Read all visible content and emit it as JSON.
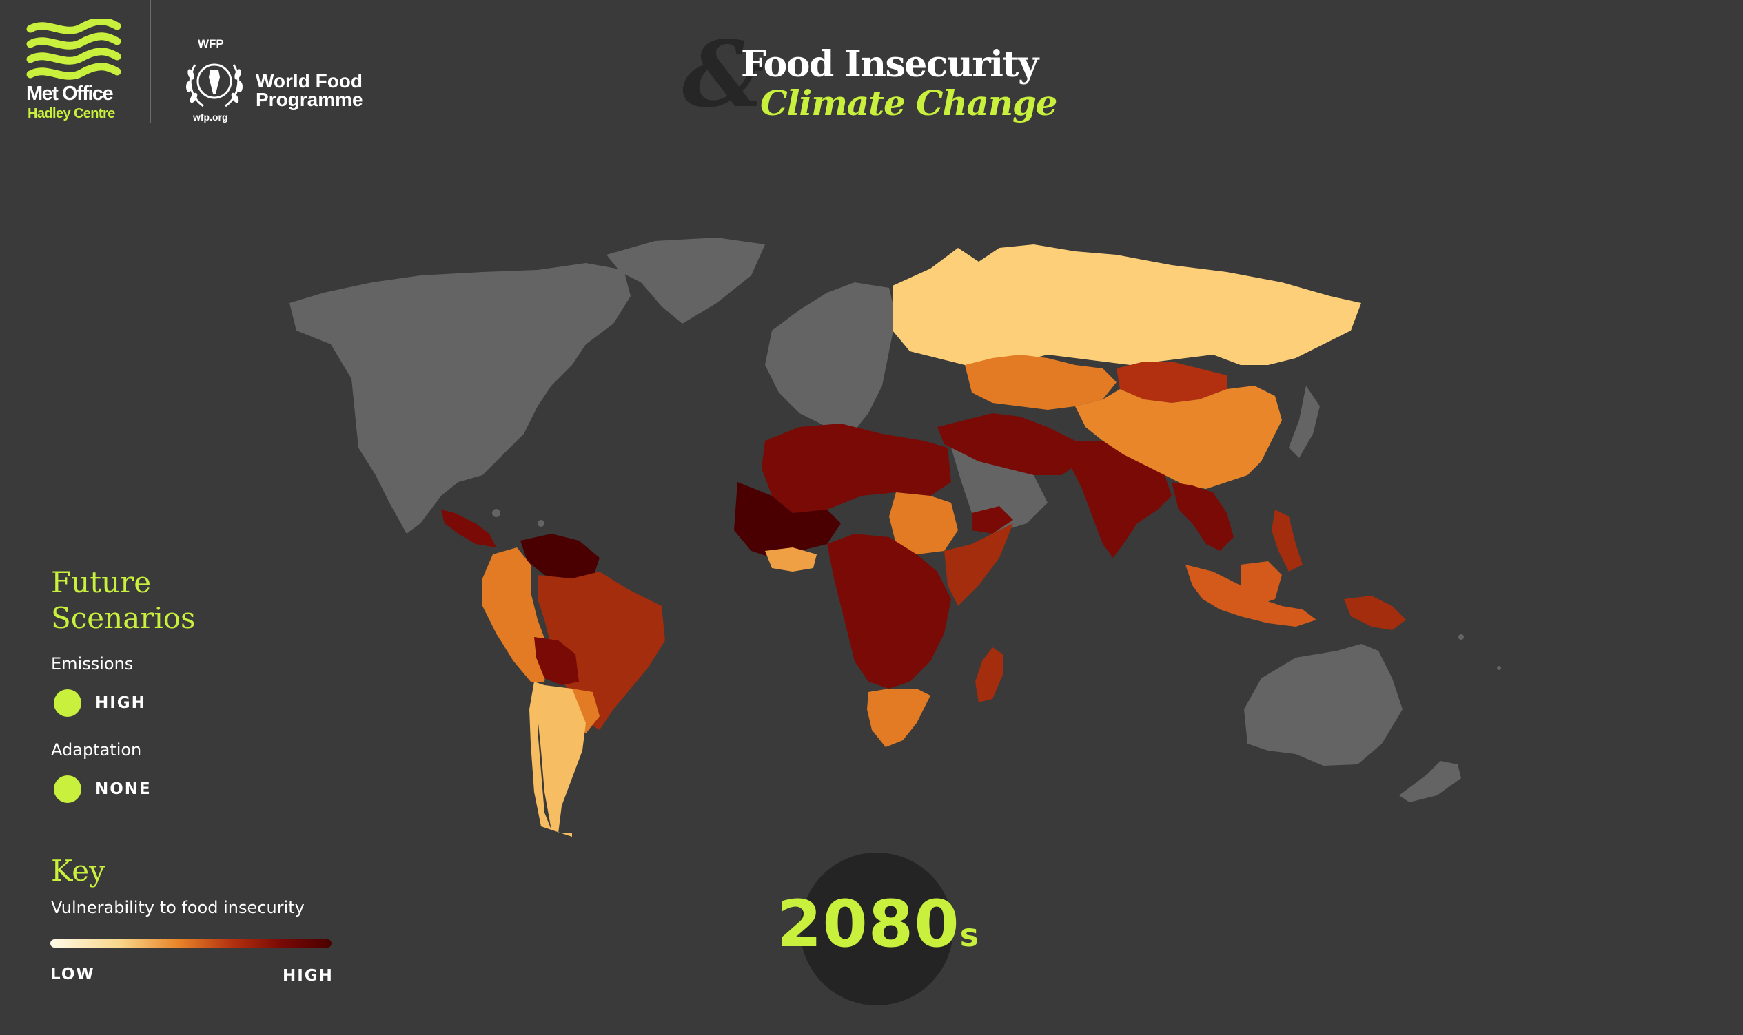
{
  "header": {
    "met_office": {
      "name": "Met Office",
      "subtitle": "Hadley Centre"
    },
    "wfp": {
      "abbr": "WFP",
      "name": "World Food\nProgramme",
      "url": "wfp.org"
    },
    "title": {
      "ampersand": "&",
      "line1": "Food Insecurity",
      "line2": "Climate Change"
    }
  },
  "panel": {
    "scenarios_heading": "Future\nScenarios",
    "emissions_label": "Emissions",
    "emissions_value": "HIGH",
    "adaptation_label": "Adaptation",
    "adaptation_value": "NONE",
    "key_heading": "Key",
    "key_subtitle": "Vulnerability to food insecurity",
    "key_low": "LOW",
    "key_high": "HIGH"
  },
  "timeline": {
    "decade": "2080",
    "suffix": "s"
  },
  "colors": {
    "background": "#3a3a3a",
    "accent": "#c8f03c",
    "no_data": "#646464",
    "scale": [
      "#fffbe8",
      "#f8d589",
      "#e9862a",
      "#b2300f",
      "#7a0a05",
      "#4a0000"
    ]
  },
  "map_regions": [
    {
      "id": "north-america",
      "level": "no-data"
    },
    {
      "id": "greenland",
      "level": "no-data"
    },
    {
      "id": "europe",
      "level": "no-data"
    },
    {
      "id": "central-america",
      "level": "very-high"
    },
    {
      "id": "venezuela-guianas",
      "level": "very-high"
    },
    {
      "id": "colombia-ecuador-peru",
      "level": "medium"
    },
    {
      "id": "brazil",
      "level": "high"
    },
    {
      "id": "bolivia",
      "level": "very-high"
    },
    {
      "id": "argentina",
      "level": "low"
    },
    {
      "id": "chile",
      "level": "low"
    },
    {
      "id": "uruguay",
      "level": "medium"
    },
    {
      "id": "north-africa",
      "level": "very-high"
    },
    {
      "id": "sahel",
      "level": "extreme"
    },
    {
      "id": "sudan",
      "level": "medium"
    },
    {
      "id": "central-africa",
      "level": "very-high"
    },
    {
      "id": "east-africa",
      "level": "high"
    },
    {
      "id": "southern-africa",
      "level": "medium"
    },
    {
      "id": "madagascar",
      "level": "very-high"
    },
    {
      "id": "russia",
      "level": "low"
    },
    {
      "id": "kazakhstan",
      "level": "medium"
    },
    {
      "id": "mongolia",
      "level": "high"
    },
    {
      "id": "china",
      "level": "medium"
    },
    {
      "id": "middle-east",
      "level": "very-high"
    },
    {
      "id": "saudi-arabia",
      "level": "no-data"
    },
    {
      "id": "south-asia",
      "level": "very-high"
    },
    {
      "id": "southeast-asia",
      "level": "very-high"
    },
    {
      "id": "indonesia",
      "level": "high"
    },
    {
      "id": "papua-new-guinea",
      "level": "very-high"
    },
    {
      "id": "australia",
      "level": "no-data"
    },
    {
      "id": "new-zealand",
      "level": "no-data"
    },
    {
      "id": "japan",
      "level": "no-data"
    }
  ]
}
